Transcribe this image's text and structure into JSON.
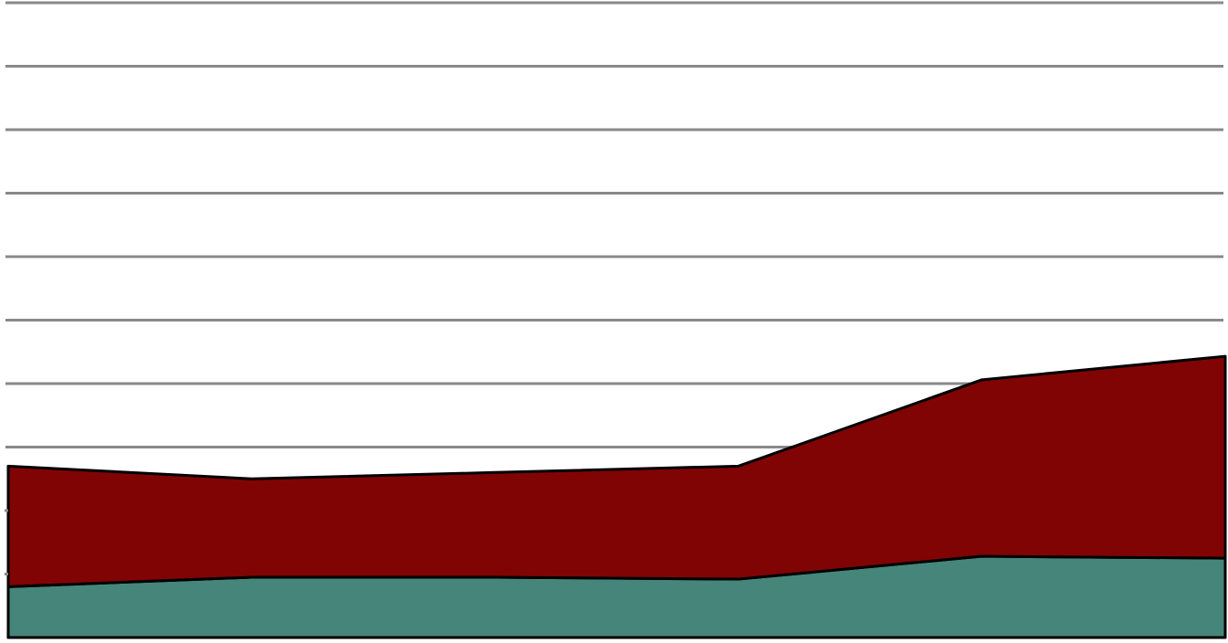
{
  "chart_data": {
    "type": "area",
    "stacked": true,
    "x": [
      1,
      2,
      3,
      4,
      5,
      6
    ],
    "series": [
      {
        "values": [
          0.8,
          0.95,
          0.95,
          0.92,
          1.28,
          1.25
        ],
        "color": "#46857a"
      },
      {
        "values": [
          1.9,
          1.55,
          1.65,
          1.78,
          2.78,
          3.18
        ],
        "color": "#800404"
      }
    ],
    "ylim": [
      0,
      10
    ],
    "grid": true,
    "outline_color": "#000000",
    "grid_color": "#898989"
  }
}
